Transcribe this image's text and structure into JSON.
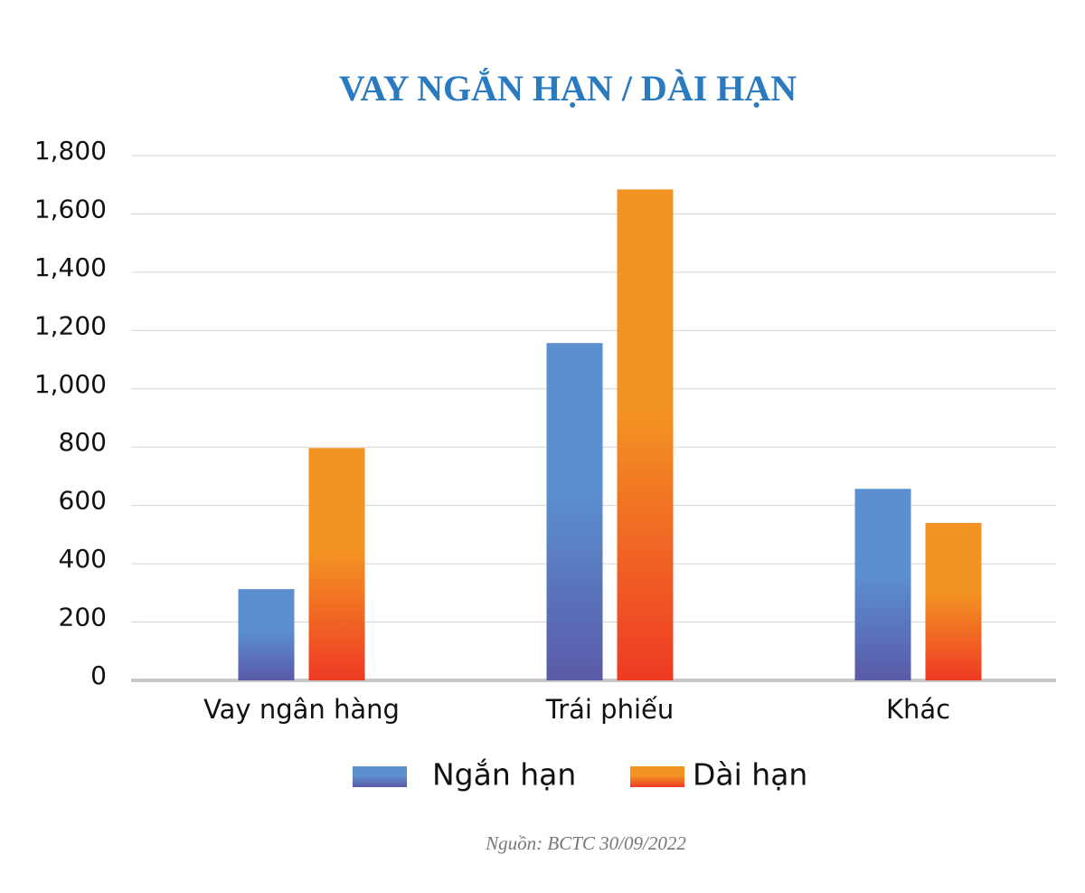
{
  "chart_data": {
    "type": "bar",
    "title": "VAY NGẮN HẠN / DÀI HẠN",
    "categories": [
      "Vay ngân hàng",
      "Trái phiếu",
      "Khác"
    ],
    "series": [
      {
        "name": "Ngắn hạn",
        "color": "#5b8fd0",
        "values": [
          313,
          1157,
          657
        ]
      },
      {
        "name": "Dài hạn",
        "color": "#f39323",
        "values": [
          797,
          1684,
          540
        ]
      }
    ],
    "ylim": [
      0,
      1800
    ],
    "yticks": [
      0,
      200,
      400,
      600,
      800,
      {
        "value": 1000,
        "label": "1,000"
      },
      {
        "value": 1200,
        "label": "1,200"
      },
      {
        "value": 1400,
        "label": "1,400"
      },
      {
        "value": 1600,
        "label": "1,600"
      },
      {
        "value": 1800,
        "label": "1,800"
      }
    ],
    "grid": true,
    "legend": "bottom",
    "source": "Nguồn: BCTC 30/09/2022"
  }
}
